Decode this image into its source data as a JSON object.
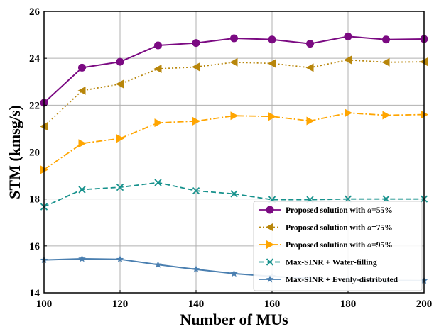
{
  "chart_data": {
    "type": "line",
    "xlabel": "Number of MUs",
    "ylabel": "STM (kmsg/s)",
    "xlim": [
      100,
      200
    ],
    "ylim": [
      14,
      26
    ],
    "xticks": [
      100,
      120,
      140,
      160,
      180,
      200
    ],
    "yticks": [
      14,
      16,
      18,
      20,
      22,
      24,
      26
    ],
    "grid": true,
    "legend_position": "lower-right",
    "x": [
      100,
      110,
      120,
      130,
      140,
      150,
      160,
      170,
      180,
      190,
      200
    ],
    "series": [
      {
        "name": "Proposed solution with α=55%",
        "name_prefix": "Proposed solution with ",
        "name_alpha": "α",
        "name_suffix": "=55%",
        "color": "#7b0a82",
        "dash": "solid",
        "marker": "circle",
        "values": [
          22.1,
          23.6,
          23.85,
          24.55,
          24.65,
          24.85,
          24.8,
          24.62,
          24.93,
          24.8,
          24.82
        ]
      },
      {
        "name": "Proposed solution with α=75%",
        "name_prefix": "Proposed solution with ",
        "name_alpha": "α",
        "name_suffix": "=75%",
        "color": "#b8860b",
        "dash": "dotted",
        "marker": "triangle-left",
        "values": [
          21.1,
          22.62,
          22.9,
          23.55,
          23.63,
          23.83,
          23.78,
          23.6,
          23.93,
          23.83,
          23.85
        ]
      },
      {
        "name": "Proposed solution with α=95%",
        "name_prefix": "Proposed solution with ",
        "name_alpha": "α",
        "name_suffix": "=95%",
        "color": "#ffa500",
        "dash": "dashdot",
        "marker": "triangle-right",
        "values": [
          19.25,
          20.37,
          20.58,
          21.25,
          21.32,
          21.55,
          21.52,
          21.33,
          21.67,
          21.57,
          21.6
        ]
      },
      {
        "name": "Max-SINR + Water-filling",
        "color": "#16918c",
        "dash": "dashed",
        "marker": "x",
        "values": [
          17.67,
          18.4,
          18.5,
          18.7,
          18.35,
          18.22,
          17.97,
          17.97,
          18.0,
          18.0,
          18.0
        ]
      },
      {
        "name": "Max-SINR + Evenly-distributed",
        "color": "#4a7fb0",
        "dash": "solid",
        "marker": "star",
        "values": [
          15.4,
          15.45,
          15.43,
          15.2,
          15.0,
          14.82,
          14.7,
          14.62,
          14.56,
          14.53,
          14.52
        ]
      }
    ]
  }
}
